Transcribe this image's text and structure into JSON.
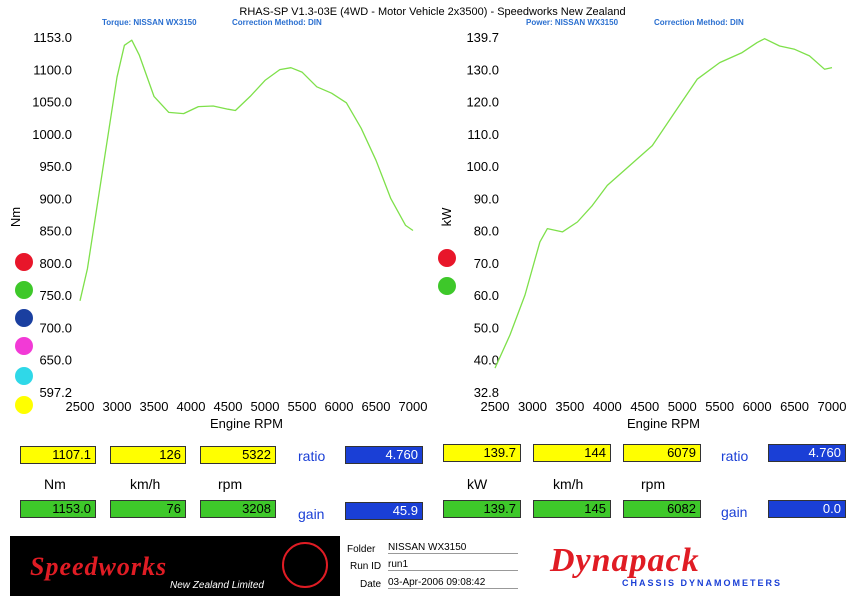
{
  "header": {
    "title": "RHAS-SP V1.3-03E  (4WD - Motor Vehicle 2x3500) - Speedworks New Zealand",
    "torque_label": "Torque: NISSAN WX3150",
    "torque_correction": "Correction Method: DIN",
    "power_label": "Power: NISSAN WX3150",
    "power_correction": "Correction Method: DIN"
  },
  "chart_data": [
    {
      "type": "line",
      "title": "",
      "xlabel": "Engine RPM",
      "ylabel": "Nm",
      "xlim": [
        2500,
        7000
      ],
      "ylim": [
        597.2,
        1153.0
      ],
      "x_ticks": [
        "2500",
        "3000",
        "3500",
        "4000",
        "4500",
        "5000",
        "5500",
        "6000",
        "6500",
        "7000"
      ],
      "y_ticks": [
        "1153.0",
        "1100.0",
        "1050.0",
        "1000.0",
        "950.0",
        "900.0",
        "850.0",
        "800.0",
        "750.0",
        "700.0",
        "650.0",
        "597.2"
      ],
      "series": [
        {
          "color": "#7ee04a",
          "x": [
            2500,
            2600,
            2800,
            3000,
            3100,
            3200,
            3300,
            3500,
            3700,
            3900,
            4100,
            4300,
            4500,
            4600,
            4800,
            5000,
            5200,
            5350,
            5500,
            5700,
            5900,
            6100,
            6300,
            6500,
            6700,
            6900,
            7000
          ],
          "y": [
            740,
            790,
            940,
            1090,
            1140,
            1148,
            1125,
            1060,
            1035,
            1033,
            1044,
            1045,
            1040,
            1038,
            1060,
            1085,
            1102,
            1105,
            1098,
            1075,
            1065,
            1050,
            1010,
            960,
            900,
            858,
            850
          ]
        }
      ]
    },
    {
      "type": "line",
      "title": "",
      "xlabel": "Engine RPM",
      "ylabel": "kW",
      "xlim": [
        2500,
        7000
      ],
      "ylim": [
        32.8,
        139.7
      ],
      "x_ticks": [
        "2500",
        "3000",
        "3500",
        "4000",
        "4500",
        "5000",
        "5500",
        "6000",
        "6500",
        "7000"
      ],
      "y_ticks": [
        "139.7",
        "130.0",
        "120.0",
        "110.0",
        "100.0",
        "90.0",
        "80.0",
        "70.0",
        "60.0",
        "50.0",
        "40.0",
        "32.8"
      ],
      "series": [
        {
          "color": "#7ee04a",
          "x": [
            2500,
            2700,
            2900,
            3100,
            3200,
            3400,
            3600,
            3800,
            4000,
            4300,
            4600,
            4900,
            5200,
            5500,
            5800,
            6000,
            6100,
            6300,
            6500,
            6700,
            6900,
            7000
          ],
          "y": [
            40,
            50,
            62,
            78,
            82,
            81,
            84,
            89,
            95,
            101,
            107,
            117,
            127,
            132,
            135,
            138,
            139.2,
            137,
            136,
            134,
            130,
            130.5
          ]
        }
      ]
    }
  ],
  "legend_colors": [
    "#e8162a",
    "#3ec82a",
    "#1a3fa0",
    "#f23ad6",
    "#2fd8e8",
    "#ffff00"
  ],
  "readouts": {
    "left": {
      "row1": [
        "1107.1",
        "126",
        "5322"
      ],
      "units": [
        "Nm",
        "km/h",
        "rpm"
      ],
      "row2": [
        "1153.0",
        "76",
        "3208"
      ],
      "ratio_label": "ratio",
      "ratio_value": "4.760",
      "gain_label": "gain",
      "gain_value": "45.9"
    },
    "right": {
      "row1": [
        "139.7",
        "144",
        "6079"
      ],
      "units": [
        "kW",
        "km/h",
        "rpm"
      ],
      "row2": [
        "139.7",
        "145",
        "6082"
      ],
      "ratio_label": "ratio",
      "ratio_value": "4.760",
      "gain_label": "gain",
      "gain_value": "0.0"
    }
  },
  "footer": {
    "brand": "Speedworks",
    "brand_sub": "New Zealand Limited",
    "folder_label": "Folder",
    "folder_value": "NISSAN WX3150",
    "runid_label": "Run ID",
    "runid_value": "run1",
    "date_label": "Date",
    "date_value": "03-Apr-2006  09:08:42",
    "logo": "Dynapack",
    "logo_sub": "CHASSIS DYNAMOMETERS"
  }
}
